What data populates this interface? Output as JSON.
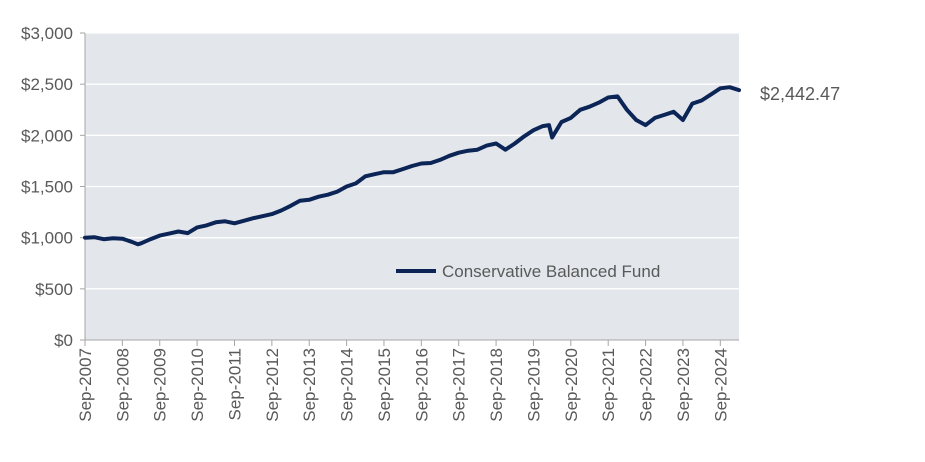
{
  "chart_data": {
    "type": "line",
    "title": "",
    "xlabel": "",
    "ylabel": "",
    "ylim": [
      0,
      3000
    ],
    "y_ticks": [
      0,
      500,
      1000,
      1500,
      2000,
      2500,
      3000
    ],
    "y_tick_labels": [
      "$0",
      "$500",
      "$1,000",
      "$1,500",
      "$2,000",
      "$2,500",
      "$3,000"
    ],
    "x_range": [
      "2007-09",
      "2025-03"
    ],
    "x_ticks": [
      "2007-09",
      "2008-09",
      "2009-09",
      "2010-09",
      "2011-09",
      "2012-09",
      "2013-09",
      "2014-09",
      "2015-09",
      "2016-09",
      "2017-09",
      "2018-09",
      "2019-09",
      "2020-09",
      "2021-09",
      "2022-09",
      "2023-09",
      "2024-09"
    ],
    "x_tick_labels": [
      "Sep-2007",
      "Sep-2008",
      "Sep-2009",
      "Sep-2010",
      "Sep-2011",
      "Sep-2012",
      "Sep-2013",
      "Sep-2014",
      "Sep-2015",
      "Sep-2016",
      "Sep-2017",
      "Sep-2018",
      "Sep-2019",
      "Sep-2020",
      "Sep-2021",
      "Sep-2022",
      "Sep-2023",
      "Sep-2024"
    ],
    "grid": true,
    "legend_position": "bottom-right",
    "series": [
      {
        "name": "Conservative Balanced Fund",
        "color": "#0c2557",
        "x": [
          "2007-09",
          "2007-12",
          "2008-03",
          "2008-06",
          "2008-09",
          "2008-12",
          "2009-02",
          "2009-03",
          "2009-06",
          "2009-09",
          "2009-12",
          "2010-03",
          "2010-06",
          "2010-09",
          "2010-12",
          "2011-03",
          "2011-06",
          "2011-09",
          "2011-12",
          "2012-03",
          "2012-06",
          "2012-09",
          "2012-12",
          "2013-03",
          "2013-06",
          "2013-09",
          "2013-12",
          "2014-03",
          "2014-06",
          "2014-09",
          "2014-12",
          "2015-03",
          "2015-06",
          "2015-09",
          "2015-12",
          "2016-03",
          "2016-06",
          "2016-09",
          "2016-12",
          "2017-03",
          "2017-06",
          "2017-09",
          "2017-12",
          "2018-03",
          "2018-06",
          "2018-09",
          "2018-12",
          "2019-03",
          "2019-06",
          "2019-09",
          "2019-12",
          "2020-02",
          "2020-03",
          "2020-06",
          "2020-09",
          "2020-12",
          "2021-03",
          "2021-06",
          "2021-09",
          "2021-12",
          "2022-03",
          "2022-06",
          "2022-09",
          "2022-12",
          "2023-03",
          "2023-06",
          "2023-09",
          "2023-12",
          "2024-03",
          "2024-06",
          "2024-09",
          "2024-12",
          "2025-03"
        ],
        "values": [
          1000,
          1005,
          985,
          995,
          990,
          960,
          935,
          945,
          985,
          1020,
          1040,
          1060,
          1045,
          1100,
          1120,
          1150,
          1160,
          1140,
          1165,
          1190,
          1210,
          1230,
          1265,
          1310,
          1360,
          1370,
          1400,
          1420,
          1450,
          1500,
          1530,
          1600,
          1620,
          1640,
          1640,
          1670,
          1700,
          1725,
          1730,
          1760,
          1800,
          1830,
          1850,
          1860,
          1900,
          1920,
          1860,
          1920,
          1990,
          2050,
          2090,
          2100,
          1980,
          2130,
          2170,
          2250,
          2280,
          2320,
          2370,
          2380,
          2250,
          2150,
          2100,
          2170,
          2200,
          2230,
          2150,
          2310,
          2340,
          2400,
          2460,
          2470,
          2442.47
        ]
      }
    ],
    "annotations": [
      {
        "text": "$2,442.47",
        "x": "2025-03",
        "y": 2442.47
      }
    ]
  },
  "plot_background": "#e3e7ec",
  "grid_color": "#ffffff",
  "axis_color": "#a6a6a6",
  "text_color": "#595959"
}
